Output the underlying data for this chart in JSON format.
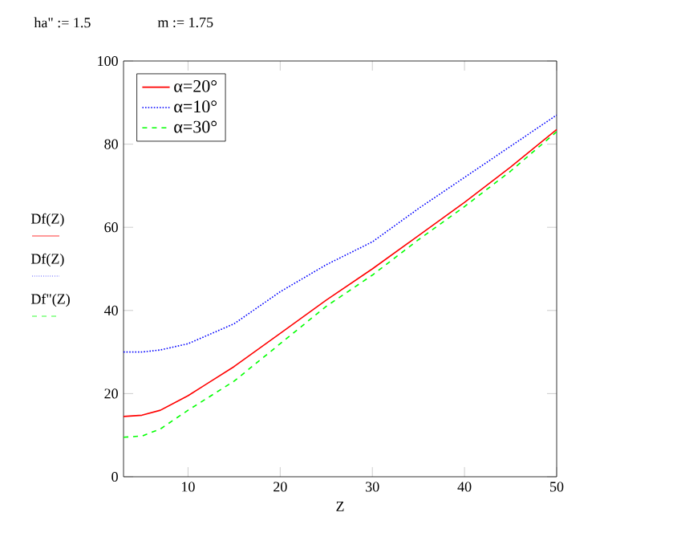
{
  "chart_data": {
    "type": "line",
    "xlabel": "Z",
    "annotations": [
      "ha\" := 1.5",
      "m := 1.75",
      "Df(Z)",
      "Df(Z)",
      "Df\"(Z)"
    ],
    "xlim": [
      3,
      50
    ],
    "ylim": [
      0,
      100
    ],
    "xticks": [
      10,
      20,
      30,
      40,
      50
    ],
    "yticks": [
      0,
      20,
      40,
      60,
      80,
      100
    ],
    "grid": false,
    "legend": "top left",
    "marker": "none",
    "series": [
      {
        "name": "α=20°",
        "color": "#ff0000",
        "line_style": "solid",
        "x": [
          3,
          5,
          7,
          10,
          15,
          20,
          25,
          30,
          35,
          40,
          45,
          50
        ],
        "values": [
          14.5,
          14.8,
          16,
          19.5,
          26.5,
          34.5,
          42.5,
          50,
          58,
          66,
          74.5,
          83.5
        ]
      },
      {
        "name": "α=10°",
        "color": "#0000ff",
        "line_style": "dotted",
        "x": [
          3,
          5,
          7,
          10,
          15,
          20,
          25,
          30,
          35,
          40,
          45,
          50
        ],
        "values": [
          30,
          30,
          30.5,
          32,
          36.8,
          44.5,
          51,
          56.5,
          64.5,
          72,
          79.5,
          87
        ]
      },
      {
        "name": "α=30°",
        "color": "#00ff00",
        "line_style": "dashed",
        "x": [
          3,
          5,
          7,
          10,
          15,
          20,
          25,
          30,
          35,
          40,
          45,
          50
        ],
        "values": [
          9.5,
          9.8,
          11.5,
          16,
          23,
          32,
          41,
          48.5,
          57,
          65,
          73.5,
          83
        ]
      }
    ]
  }
}
